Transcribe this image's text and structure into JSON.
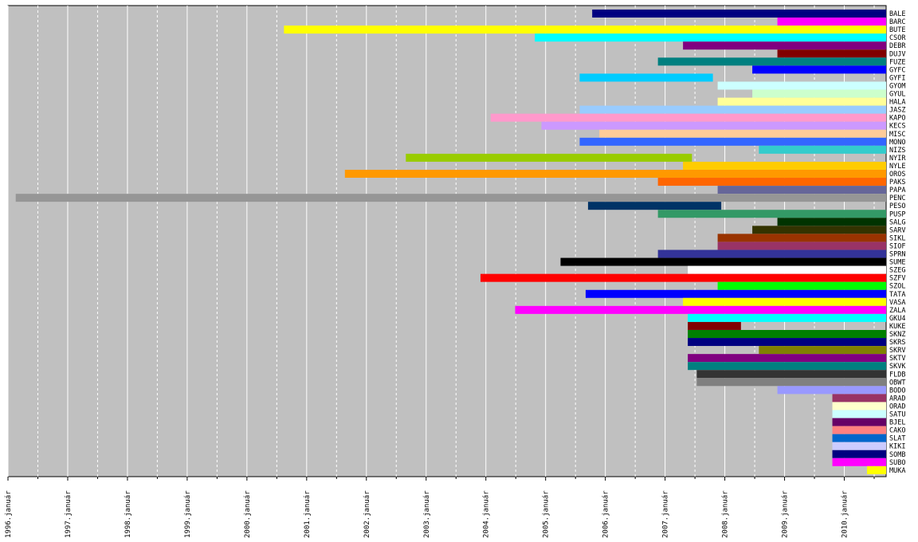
{
  "chart_data": {
    "type": "bar",
    "orientation": "horizontal-timeline",
    "title": "",
    "xlabel": "",
    "ylabel": "",
    "grid": true,
    "plot_background": "#c0c0c0",
    "x_range": [
      1996.0,
      2010.7
    ],
    "x_ticks": [
      {
        "value": 1996,
        "label": "1996.január"
      },
      {
        "value": 1997,
        "label": "1997.január"
      },
      {
        "value": 1998,
        "label": "1998.január"
      },
      {
        "value": 1999,
        "label": "1999.január"
      },
      {
        "value": 2000,
        "label": "2000.január"
      },
      {
        "value": 2001,
        "label": "2001.január"
      },
      {
        "value": 2002,
        "label": "2002.január"
      },
      {
        "value": 2003,
        "label": "2003.január"
      },
      {
        "value": 2004,
        "label": "2004.január"
      },
      {
        "value": 2005,
        "label": "2005.január"
      },
      {
        "value": 2006,
        "label": "2006.január"
      },
      {
        "value": 2007,
        "label": "2007.január"
      },
      {
        "value": 2008,
        "label": "2008.január"
      },
      {
        "value": 2009,
        "label": "2009.január"
      },
      {
        "value": 2010,
        "label": "2010.január"
      }
    ],
    "bars": [
      {
        "name": "BALE",
        "start": 2005.78,
        "color": "#000080"
      },
      {
        "name": "BARC",
        "start": 2008.88,
        "color": "#ff00ff"
      },
      {
        "name": "BUTE",
        "start": 2000.62,
        "color": "#ffff00"
      },
      {
        "name": "CSOR",
        "start": 2004.82,
        "color": "#00ffff"
      },
      {
        "name": "DEBR",
        "start": 2007.3,
        "color": "#800080"
      },
      {
        "name": "DUJV",
        "start": 2008.88,
        "color": "#800000"
      },
      {
        "name": "FUZE",
        "start": 2006.88,
        "color": "#008080"
      },
      {
        "name": "GYFC",
        "start": 2008.46,
        "color": "#0000ff"
      },
      {
        "name": "GYFI",
        "start": 2005.57,
        "start_end": 2007.8,
        "color": "#00ccff"
      },
      {
        "name": "GYOM",
        "start": 2007.88,
        "color": "#ccffff"
      },
      {
        "name": "GYUL",
        "start": 2008.46,
        "color": "#ccffcc"
      },
      {
        "name": "HALA",
        "start": 2007.88,
        "color": "#ffff99"
      },
      {
        "name": "JASZ",
        "start": 2005.57,
        "color": "#99ccff"
      },
      {
        "name": "KAPO",
        "start": 2004.08,
        "color": "#ff99cc"
      },
      {
        "name": "KECS",
        "start": 2004.93,
        "color": "#cc99ff"
      },
      {
        "name": "MISC",
        "start": 2005.9,
        "color": "#ffcc99"
      },
      {
        "name": "MONO",
        "start": 2005.57,
        "color": "#3366ff"
      },
      {
        "name": "NIZS",
        "start": 2008.57,
        "color": "#33cccc"
      },
      {
        "name": "NYIR",
        "start": 2002.66,
        "end": 2007.45,
        "color": "#99cc00"
      },
      {
        "name": "NYLE",
        "start": 2007.3,
        "color": "#ffcc00"
      },
      {
        "name": "OROS",
        "start": 2001.64,
        "color": "#ff9900"
      },
      {
        "name": "PAKS",
        "start": 2006.88,
        "color": "#ff6600"
      },
      {
        "name": "PAPA",
        "start": 2007.88,
        "color": "#666699"
      },
      {
        "name": "PENC",
        "start": 1996.13,
        "color": "#969696"
      },
      {
        "name": "PESO",
        "start": 2005.71,
        "end": 2007.94,
        "color": "#003366"
      },
      {
        "name": "PUSP",
        "start": 2006.88,
        "color": "#339966"
      },
      {
        "name": "SALG",
        "start": 2008.88,
        "color": "#003300"
      },
      {
        "name": "SARV",
        "start": 2008.46,
        "color": "#333300"
      },
      {
        "name": "SIKL",
        "start": 2007.88,
        "color": "#993300"
      },
      {
        "name": "SIOF",
        "start": 2007.88,
        "color": "#993366"
      },
      {
        "name": "SPRN",
        "start": 2006.88,
        "color": "#333399"
      },
      {
        "name": "SUME",
        "start": 2005.25,
        "color": "#000000"
      },
      {
        "name": "SZEG",
        "start": 2007.38,
        "color": "#ffffff"
      },
      {
        "name": "SZFV",
        "start": 2003.91,
        "color": "#ff0000"
      },
      {
        "name": "SZOL",
        "start": 2007.88,
        "color": "#00ff00"
      },
      {
        "name": "TATA",
        "start": 2005.67,
        "color": "#0000ff"
      },
      {
        "name": "VASA",
        "start": 2007.3,
        "color": "#ffff00"
      },
      {
        "name": "ZALA",
        "start": 2004.49,
        "color": "#ff00ff"
      },
      {
        "name": "GKU4",
        "start": 2007.38,
        "color": "#00ffff"
      },
      {
        "name": "KUKE",
        "start": 2007.38,
        "end": 2008.27,
        "color": "#800000"
      },
      {
        "name": "SKNZ",
        "start": 2007.38,
        "color": "#008000"
      },
      {
        "name": "SKRS",
        "start": 2007.38,
        "color": "#000080"
      },
      {
        "name": "SKRV",
        "start": 2008.57,
        "color": "#808000"
      },
      {
        "name": "SKTV",
        "start": 2007.38,
        "color": "#800080"
      },
      {
        "name": "SKVK",
        "start": 2007.38,
        "color": "#008080"
      },
      {
        "name": "FLDB",
        "start": 2007.53,
        "color": "#333333"
      },
      {
        "name": "OBWT",
        "start": 2007.53,
        "color": "#808080"
      },
      {
        "name": "BODO",
        "start": 2008.88,
        "color": "#9999ff"
      },
      {
        "name": "ARAD",
        "start": 2009.8,
        "color": "#993366"
      },
      {
        "name": "ORAD",
        "start": 2009.8,
        "color": "#ffffcc"
      },
      {
        "name": "SATU",
        "start": 2009.8,
        "color": "#ccffff"
      },
      {
        "name": "BJEL",
        "start": 2009.8,
        "color": "#660066"
      },
      {
        "name": "CAKO",
        "start": 2009.8,
        "color": "#ff8080"
      },
      {
        "name": "SLAT",
        "start": 2009.8,
        "color": "#0066cc"
      },
      {
        "name": "KIKI",
        "start": 2009.8,
        "color": "#ccccff"
      },
      {
        "name": "SOMB",
        "start": 2009.8,
        "color": "#000080"
      },
      {
        "name": "SUBO",
        "start": 2009.8,
        "color": "#ff00ff"
      },
      {
        "name": "MUKA",
        "start": 2010.38,
        "color": "#ffff00"
      }
    ]
  }
}
